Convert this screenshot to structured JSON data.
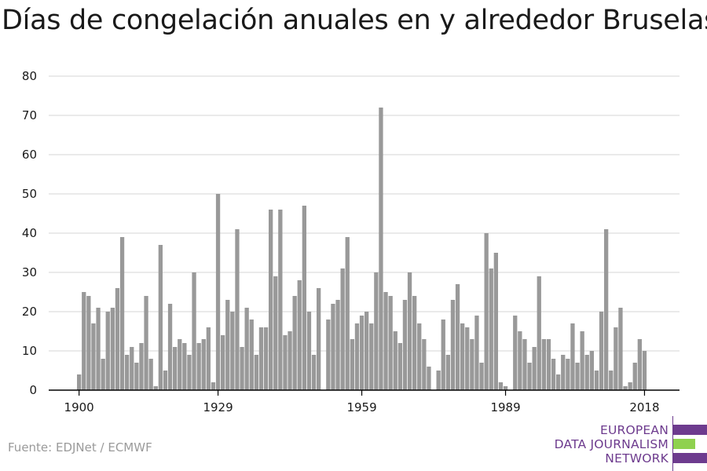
{
  "title": "Días de congelación anuales en y alrededor Bruselas",
  "source": "Fuente: EDJNet / ECMWF",
  "logo": {
    "line1": "EUROPEAN",
    "line2": "DATA JOURNALISM",
    "line3": "NETWORK",
    "colors": {
      "purple": "#6d3b8e",
      "green": "#8fd14f"
    }
  },
  "colors": {
    "bar": "#999999",
    "grid": "#dddddd",
    "axis": "#000000",
    "text": "#1a1a1a"
  },
  "chart_data": {
    "type": "bar",
    "title": "Días de congelación anuales en y alrededor Bruselas",
    "xlabel": "",
    "ylabel": "",
    "x_ticks": [
      1900,
      1929,
      1959,
      1989,
      2018
    ],
    "y_ticks": [
      0,
      10,
      20,
      30,
      40,
      50,
      60,
      70,
      80
    ],
    "ylim": [
      0,
      80
    ],
    "grid": true,
    "categories": [
      1900,
      1901,
      1902,
      1903,
      1904,
      1905,
      1906,
      1907,
      1908,
      1909,
      1910,
      1911,
      1912,
      1913,
      1914,
      1915,
      1916,
      1917,
      1918,
      1919,
      1920,
      1921,
      1922,
      1923,
      1924,
      1925,
      1926,
      1927,
      1928,
      1929,
      1930,
      1931,
      1932,
      1933,
      1934,
      1935,
      1936,
      1937,
      1938,
      1939,
      1940,
      1941,
      1942,
      1943,
      1944,
      1945,
      1946,
      1947,
      1948,
      1949,
      1950,
      1951,
      1952,
      1953,
      1954,
      1955,
      1956,
      1957,
      1958,
      1959,
      1960,
      1961,
      1962,
      1963,
      1964,
      1965,
      1966,
      1967,
      1968,
      1969,
      1970,
      1971,
      1972,
      1973,
      1974,
      1975,
      1976,
      1977,
      1978,
      1979,
      1980,
      1981,
      1982,
      1983,
      1984,
      1985,
      1986,
      1987,
      1988,
      1989,
      1990,
      1991,
      1992,
      1993,
      1994,
      1995,
      1996,
      1997,
      1998,
      1999,
      2000,
      2001,
      2002,
      2003,
      2004,
      2005,
      2006,
      2007,
      2008,
      2009,
      2010,
      2011,
      2012,
      2013,
      2014,
      2015,
      2016,
      2017,
      2018
    ],
    "values": [
      4,
      25,
      24,
      17,
      21,
      8,
      20,
      21,
      26,
      39,
      9,
      11,
      7,
      12,
      24,
      8,
      1,
      37,
      5,
      22,
      11,
      13,
      12,
      9,
      30,
      12,
      13,
      16,
      2,
      50,
      14,
      23,
      20,
      41,
      11,
      21,
      18,
      9,
      16,
      16,
      46,
      29,
      46,
      14,
      15,
      24,
      28,
      47,
      20,
      9,
      26,
      0,
      18,
      22,
      23,
      31,
      39,
      13,
      17,
      19,
      20,
      17,
      30,
      72,
      25,
      24,
      15,
      12,
      23,
      30,
      24,
      17,
      13,
      6,
      0,
      5,
      18,
      9,
      23,
      27,
      17,
      16,
      13,
      19,
      7,
      40,
      31,
      35,
      2,
      1,
      0,
      19,
      15,
      13,
      7,
      11,
      29,
      13,
      13,
      8,
      4,
      9,
      8,
      17,
      7,
      15,
      9,
      10,
      5,
      20,
      41,
      5,
      16,
      21,
      1,
      2,
      7,
      13,
      10
    ]
  }
}
